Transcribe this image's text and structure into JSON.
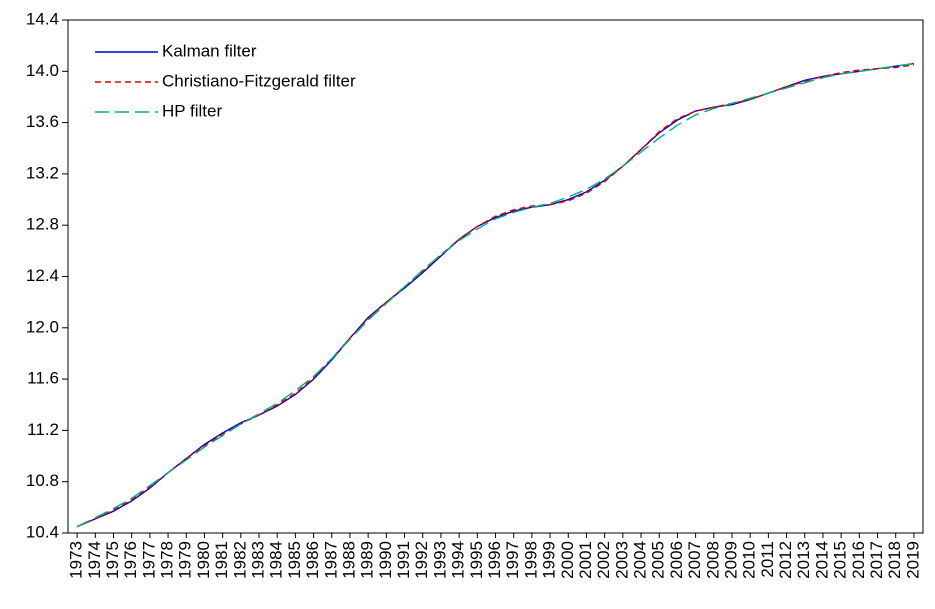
{
  "chart_data": {
    "type": "line",
    "categories": [
      "1973",
      "1974",
      "1975",
      "1976",
      "1977",
      "1978",
      "1979",
      "1980",
      "1981",
      "1982",
      "1983",
      "1984",
      "1985",
      "1986",
      "1987",
      "1988",
      "1989",
      "1990",
      "1991",
      "1992",
      "1993",
      "1994",
      "1995",
      "1996",
      "1997",
      "1998",
      "1999",
      "2000",
      "2001",
      "2002",
      "2003",
      "2004",
      "2005",
      "2006",
      "2007",
      "2008",
      "2009",
      "2010",
      "2011",
      "2012",
      "2013",
      "2014",
      "2015",
      "2016",
      "2017",
      "2018",
      "2019"
    ],
    "series": [
      {
        "name": "Kalman filter",
        "color": "#0000cc",
        "dash": "solid",
        "values": [
          10.45,
          10.51,
          10.57,
          10.65,
          10.75,
          10.87,
          10.98,
          11.09,
          11.18,
          11.26,
          11.32,
          11.39,
          11.48,
          11.6,
          11.75,
          11.92,
          12.08,
          12.2,
          12.31,
          12.43,
          12.56,
          12.69,
          12.79,
          12.86,
          12.91,
          12.94,
          12.96,
          13.0,
          13.06,
          13.15,
          13.26,
          13.39,
          13.52,
          13.62,
          13.69,
          13.72,
          13.74,
          13.78,
          13.83,
          13.88,
          13.93,
          13.96,
          13.98,
          14.0,
          14.02,
          14.04,
          14.06
        ]
      },
      {
        "name": "Christiano-Fitzgerald filter",
        "color": "#e00000",
        "dash": "short",
        "values": [
          10.45,
          10.51,
          10.58,
          10.66,
          10.76,
          10.87,
          10.98,
          11.08,
          11.17,
          11.25,
          11.32,
          11.4,
          11.49,
          11.61,
          11.76,
          11.92,
          12.07,
          12.2,
          12.32,
          12.44,
          12.57,
          12.69,
          12.79,
          12.87,
          12.92,
          12.95,
          12.96,
          12.99,
          13.05,
          13.14,
          13.26,
          13.39,
          13.53,
          13.63,
          13.69,
          13.72,
          13.75,
          13.78,
          13.83,
          13.88,
          13.92,
          13.96,
          13.99,
          14.01,
          14.02,
          14.03,
          14.05
        ]
      },
      {
        "name": "HP filter",
        "color": "#00b080",
        "dash": "long",
        "values": [
          10.45,
          10.52,
          10.59,
          10.67,
          10.77,
          10.87,
          10.97,
          11.07,
          11.16,
          11.25,
          11.33,
          11.41,
          11.51,
          11.62,
          11.76,
          11.91,
          12.06,
          12.19,
          12.32,
          12.45,
          12.57,
          12.68,
          12.77,
          12.85,
          12.9,
          12.94,
          12.97,
          13.02,
          13.08,
          13.16,
          13.26,
          13.37,
          13.48,
          13.58,
          13.66,
          13.71,
          13.75,
          13.79,
          13.83,
          13.87,
          13.91,
          13.95,
          13.98,
          14.0,
          14.02,
          14.04,
          14.06
        ]
      }
    ],
    "ylim": [
      10.4,
      14.4
    ],
    "yticks": [
      10.4,
      10.8,
      11.2,
      11.6,
      {
        "value": 12,
        "label": "12.0"
      },
      12.4,
      12.8,
      13.2,
      13.6,
      {
        "value": 14,
        "label": "14.0"
      },
      14.4
    ],
    "legend": "upper-left",
    "grid": false
  }
}
